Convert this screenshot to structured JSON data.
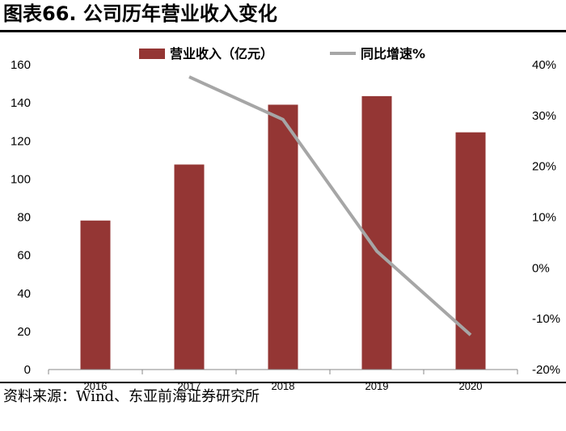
{
  "header": {
    "title": "图表66. 公司历年营业收入变化"
  },
  "footer": {
    "source": "资料来源：Wind、东亚前海证券研究所"
  },
  "colors": {
    "bar": "#943634",
    "line": "#A6A6A6"
  },
  "chart_data": {
    "type": "bar",
    "title": "",
    "categories": [
      "2016",
      "2017",
      "2018",
      "2019",
      "2020"
    ],
    "series": [
      {
        "name": "营业收入（亿元）",
        "type": "bar",
        "axis": "left",
        "values": [
          78.2,
          107.6,
          139.0,
          143.5,
          124.5
        ]
      },
      {
        "name": "同比增速%",
        "type": "line",
        "axis": "right",
        "values": [
          null,
          37.6,
          29.2,
          3.3,
          -13.2
        ]
      }
    ],
    "y_left": {
      "ylim": [
        0,
        160
      ],
      "ticks": [
        "0",
        "20",
        "40",
        "60",
        "80",
        "100",
        "120",
        "140",
        "160"
      ]
    },
    "y_right": {
      "ylim": [
        -20,
        40
      ],
      "ticks": [
        "-20%",
        "-10%",
        "0%",
        "10%",
        "20%",
        "30%",
        "40%"
      ]
    },
    "grid": false,
    "legend_position": "top"
  }
}
